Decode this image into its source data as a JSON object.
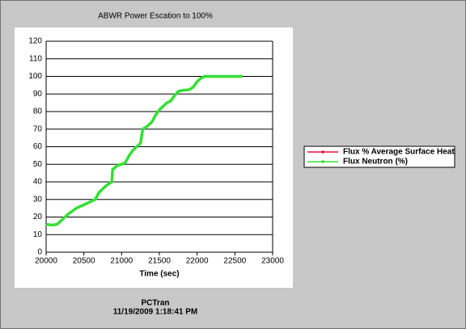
{
  "chart_data": {
    "type": "line",
    "title": "ABWR Power Escation to 100%",
    "x_label": "Time (sec)",
    "footer": [
      "PCTran",
      "11/19/2009 1:18:41 PM"
    ],
    "x": [
      20000,
      20050,
      20100,
      20150,
      20200,
      20300,
      20400,
      20500,
      20600,
      20650,
      20700,
      20750,
      20800,
      20870,
      20880,
      20950,
      21000,
      21050,
      21100,
      21150,
      21200,
      21250,
      21280,
      21350,
      21400,
      21450,
      21500,
      21550,
      21600,
      21650,
      21700,
      21750,
      21800,
      21900,
      21950,
      22000,
      22050,
      22100,
      22200,
      22400,
      22600
    ],
    "series": [
      {
        "name": "Flux % Average Surface Heat",
        "color": "#e8103c",
        "values": [
          16,
          15.5,
          15.5,
          16,
          18,
          22,
          25,
          27,
          29,
          30,
          34,
          36,
          38,
          40,
          47,
          49.5,
          50,
          51,
          55,
          58,
          60,
          62,
          70,
          72,
          74,
          78,
          81,
          83,
          85,
          86,
          89,
          91.5,
          92,
          92.5,
          94,
          97,
          99,
          100,
          100,
          100,
          100
        ]
      },
      {
        "name": "Flux Neutron (%)",
        "color": "#33e033",
        "values": [
          16,
          15.5,
          15.5,
          16,
          18,
          22,
          25,
          27,
          29,
          30,
          34,
          36,
          38,
          40,
          47,
          49.5,
          50,
          51,
          55,
          58,
          60,
          62,
          70,
          72,
          74,
          78,
          81,
          83,
          85,
          86,
          89,
          91.5,
          92,
          92.5,
          94,
          97,
          99,
          100,
          100,
          100,
          100
        ]
      }
    ],
    "xlim": [
      20000,
      23000
    ],
    "xticks": [
      20000,
      20500,
      21000,
      21500,
      22000,
      22500,
      23000
    ],
    "ylim": [
      0,
      120
    ],
    "yticks": [
      0,
      10,
      20,
      30,
      40,
      50,
      60,
      70,
      80,
      90,
      100,
      110,
      120
    ],
    "grid": true
  }
}
